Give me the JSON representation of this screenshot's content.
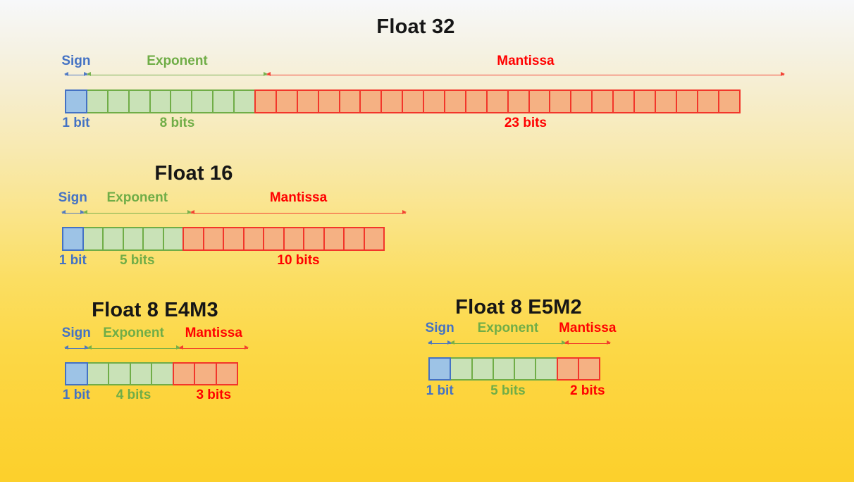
{
  "colors": {
    "sign_fill": "#9dc3e6",
    "sign_border": "#4472c4",
    "sign_text": "#4472c4",
    "exponent_fill": "#c9e2b7",
    "exponent_border": "#70ad47",
    "exponent_text": "#70ad47",
    "mantissa_fill": "#f5b183",
    "mantissa_border": "#f2362a",
    "mantissa_text": "#ff0000",
    "title_text": "#161616"
  },
  "formats": [
    {
      "title": "Float 32",
      "sign_label": "Sign",
      "exponent_label": "Exponent",
      "mantissa_label": "Mantissa",
      "sign_bits": 1,
      "exponent_bits": 8,
      "mantissa_bits": 23,
      "sign_bits_label": "1 bit",
      "exponent_bits_label": "8 bits",
      "mantissa_bits_label": "23 bits"
    },
    {
      "title": "Float 16",
      "sign_label": "Sign",
      "exponent_label": "Exponent",
      "mantissa_label": "Mantissa",
      "sign_bits": 1,
      "exponent_bits": 5,
      "mantissa_bits": 10,
      "sign_bits_label": "1 bit",
      "exponent_bits_label": "5 bits",
      "mantissa_bits_label": "10 bits"
    },
    {
      "title": "Float 8 E4M3",
      "sign_label": "Sign",
      "exponent_label": "Exponent",
      "mantissa_label": "Mantissa",
      "sign_bits": 1,
      "exponent_bits": 4,
      "mantissa_bits": 3,
      "sign_bits_label": "1 bit",
      "exponent_bits_label": "4 bits",
      "mantissa_bits_label": "3 bits"
    },
    {
      "title": "Float 8 E5M2",
      "sign_label": "Sign",
      "exponent_label": "Exponent",
      "mantissa_label": "Mantissa",
      "sign_bits": 1,
      "exponent_bits": 5,
      "mantissa_bits": 2,
      "sign_bits_label": "1 bit",
      "exponent_bits_label": "5 bits",
      "mantissa_bits_label": "2 bits"
    }
  ]
}
